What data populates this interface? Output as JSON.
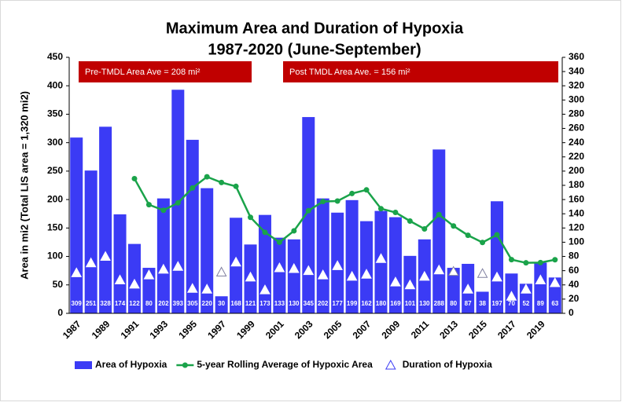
{
  "chart_data": {
    "type": "bar_line",
    "title": "Maximum Area and Duration of Hypoxia",
    "subtitle": "1987-2020 (June-September)",
    "y_label": "Area in mi2 (Total LIS area = 1,320 mi2)",
    "categories": [
      "1987",
      null,
      "1989",
      null,
      "1991",
      null,
      "1993",
      null,
      "1995",
      null,
      "1997",
      null,
      "1999",
      null,
      "2001",
      null,
      "2003",
      null,
      "2005",
      null,
      "2007",
      null,
      "2009",
      null,
      "2011",
      null,
      "2013",
      null,
      "2015",
      null,
      "2017",
      null,
      "2019",
      null
    ],
    "series": [
      {
        "name": "Area of Hypoxia",
        "color": "#3b3bf5",
        "kind": "bar",
        "values": [
          309,
          251,
          328,
          174,
          122,
          80,
          202,
          393,
          305,
          220,
          30,
          168,
          121,
          173,
          133,
          130,
          345,
          202,
          177,
          199,
          162,
          180,
          169,
          101,
          130,
          288,
          80,
          87,
          38,
          197,
          70,
          52,
          89,
          63
        ]
      },
      {
        "name": "5-year Rolling Average of Hypoxic Area",
        "color": "#1aa34a",
        "kind": "line",
        "values": [
          null,
          null,
          null,
          null,
          236.8,
          191,
          181.2,
          194.2,
          220.4,
          240,
          230,
          223.2,
          168.8,
          142.4,
          125,
          145,
          180.4,
          196.6,
          197.4,
          210.6,
          217,
          184,
          177.4,
          162.2,
          148.4,
          173.6,
          153.6,
          137.2,
          124.6,
          138,
          94.4,
          88.8,
          89.2,
          94.2
        ]
      },
      {
        "name": "Duration of Hypoxia",
        "color": "#ffffff",
        "kind": "marker",
        "axis": "y2",
        "values": [
          57,
          71,
          80,
          47,
          41,
          54,
          62,
          66,
          35,
          34,
          58,
          72,
          51,
          33,
          64,
          63,
          60,
          54,
          67,
          52,
          55,
          77,
          44,
          40,
          52,
          61,
          59,
          34,
          56,
          51,
          24,
          34,
          47,
          43
        ]
      }
    ],
    "ylim": [
      0,
      450
    ],
    "yticks": [
      0,
      50,
      100,
      150,
      200,
      250,
      300,
      350,
      400,
      450
    ],
    "y2lim": [
      0,
      360
    ],
    "y2ticks": [
      0,
      20,
      40,
      60,
      80,
      100,
      120,
      140,
      160,
      180,
      200,
      220,
      240,
      260,
      280,
      300,
      320,
      340,
      360
    ],
    "annotations": [
      {
        "text": "Pre-TMDL Area Ave = 208 mi²",
        "color": "#c00000"
      },
      {
        "text": "Post TMDL Area Ave. = 156 mi²",
        "color": "#c00000"
      }
    ]
  }
}
